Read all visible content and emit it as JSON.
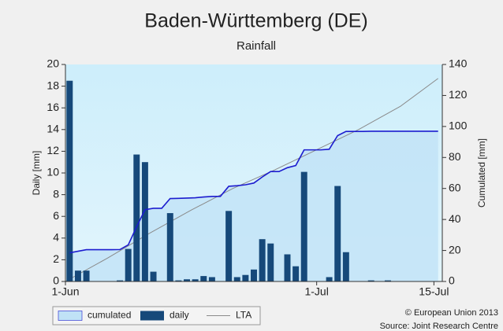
{
  "chart_data": {
    "type": "bar-line",
    "title": "Baden-Württemberg (DE)",
    "subtitle": "Rainfall",
    "y_label": "Daily [mm]",
    "y2_label": "Cumulated [mm]",
    "x": [
      0,
      1,
      2,
      3,
      4,
      5,
      6,
      7,
      8,
      9,
      10,
      11,
      12,
      13,
      14,
      15,
      16,
      17,
      18,
      19,
      20,
      21,
      22,
      23,
      24,
      25,
      26,
      27,
      28,
      29,
      30,
      31,
      32,
      33,
      34,
      35,
      36,
      37,
      38,
      39,
      40,
      41,
      42,
      43,
      44
    ],
    "xlim": [
      0,
      45
    ],
    "xticks": [
      {
        "value": 0,
        "label": "1-Jun"
      },
      {
        "value": 30,
        "label": "1-Jul"
      },
      {
        "value": 44,
        "label": "15-Jul"
      }
    ],
    "ylim": [
      0,
      20
    ],
    "yticks": [
      0,
      2,
      4,
      6,
      8,
      10,
      12,
      14,
      16,
      18,
      20
    ],
    "y2lim": [
      0,
      140
    ],
    "y2ticks": [
      0,
      20,
      40,
      60,
      80,
      100,
      120,
      140
    ],
    "series": [
      {
        "name": "cumulated",
        "color": "#1c1ccf",
        "fill": "#c0e2f6",
        "axis": "y2",
        "values": [
          18.5,
          19.5,
          20.5,
          20.5,
          20.5,
          20.5,
          20.6,
          23.6,
          35.3,
          46.3,
          47.2,
          47.2,
          53.5,
          53.6,
          53.8,
          54,
          54.5,
          54.9,
          54.9,
          61.4,
          61.8,
          62.4,
          63.5,
          67.4,
          70.9,
          70.9,
          73.4,
          74.8,
          84.9,
          84.9,
          84.9,
          85.3,
          94.1,
          96.8,
          96.8,
          96.8,
          96.9,
          96.9,
          96.9,
          96.9,
          96.9,
          96.9,
          96.9,
          96.9,
          96.9
        ]
      },
      {
        "name": "daily",
        "color": "#16497a",
        "axis": "y",
        "values": [
          18.5,
          1,
          1,
          0,
          0,
          0,
          0.1,
          3,
          11.7,
          11,
          0.9,
          0,
          6.3,
          0.1,
          0.2,
          0.2,
          0.5,
          0.4,
          0,
          6.5,
          0.4,
          0.6,
          1.1,
          3.9,
          3.5,
          0,
          2.5,
          1.4,
          10.1,
          0,
          0,
          0.4,
          8.8,
          2.7,
          0,
          0,
          0.1,
          0,
          0.1,
          0,
          0,
          0,
          0,
          0,
          0
        ]
      },
      {
        "name": "LTA",
        "color": "#8a8a8a",
        "axis": "y2",
        "x": [
          0,
          5,
          10,
          15,
          20,
          25,
          30,
          35,
          40,
          44.5
        ],
        "values": [
          0,
          15,
          31,
          46,
          60,
          72,
          85,
          98,
          113,
          131
        ]
      }
    ],
    "footer": [
      "© European Union 2013",
      "Source: Joint Research Centre"
    ]
  }
}
